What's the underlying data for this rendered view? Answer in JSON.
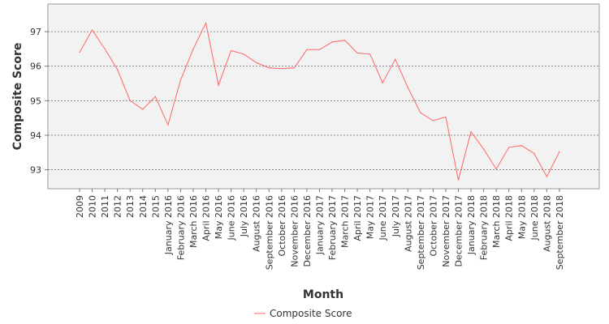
{
  "chart_data": {
    "type": "line",
    "xlabel": "Month",
    "ylabel": "Composite Score",
    "categories": [
      "2009",
      "2010",
      "2011",
      "2012",
      "2013",
      "2014",
      "2015",
      "January 2016",
      "February 2016",
      "March 2016",
      "April 2016",
      "May 2016",
      "June 2016",
      "July 2016",
      "August 2016",
      "September 2016",
      "October 2016",
      "November 2016",
      "December 2016",
      "January 2017",
      "February 2017",
      "March 2017",
      "April 2017",
      "May 2017",
      "June 2017",
      "July 2017",
      "August 2017",
      "September 2017",
      "October 2017",
      "November 2017",
      "December 2017",
      "January 2018",
      "February 2018",
      "March 2018",
      "April 2018",
      "May 2018",
      "June 2018",
      "August 2018",
      "September 2018"
    ],
    "series": [
      {
        "name": "Composite Score",
        "color": "#ff6666",
        "values": [
          96.4,
          97.05,
          96.5,
          95.9,
          95.0,
          94.75,
          95.12,
          94.3,
          95.6,
          96.5,
          97.25,
          95.45,
          96.45,
          96.35,
          96.1,
          95.95,
          95.93,
          95.95,
          96.48,
          96.48,
          96.7,
          96.75,
          96.38,
          96.35,
          95.52,
          96.2,
          95.38,
          94.65,
          94.42,
          94.53,
          92.7,
          94.1,
          93.6,
          93.02,
          93.65,
          93.7,
          93.47,
          92.8,
          93.52
        ]
      }
    ],
    "yticks": [
      93,
      94,
      95,
      96,
      97
    ],
    "ylim": [
      92.45,
      97.8
    ],
    "grid": true,
    "legend": "bottom-center"
  }
}
